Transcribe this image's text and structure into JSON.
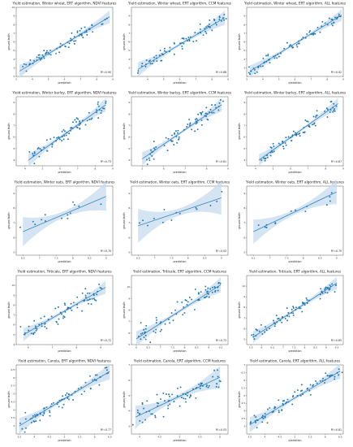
{
  "chart_data": [
    {
      "type": "scatter",
      "title": "Yield estimation, Winter wheat, ERT algorithm, NDVI features",
      "xlabel": "prediction",
      "ylabel": "ground truth",
      "r2": "R²=0.90",
      "xlim": [
        3,
        9
      ],
      "ylim": [
        2,
        10
      ],
      "xticks": [
        3,
        4,
        5,
        6,
        7,
        8,
        9
      ],
      "yticks": [
        2,
        3,
        4,
        5,
        6,
        7,
        8,
        9,
        10
      ],
      "fit": [
        3.2,
        2.6,
        8.8,
        8.9
      ],
      "band": 0.45,
      "spread": 0.5
    },
    {
      "type": "scatter",
      "title": "Yield estimation, Winter wheat, ERT algorithm, CCM features",
      "xlabel": "prediction",
      "ylabel": "ground truth",
      "r2": "R²=0.88",
      "xlim": [
        3,
        9
      ],
      "ylim": [
        2,
        10
      ],
      "xticks": [
        4,
        5,
        6,
        7,
        8,
        9
      ],
      "yticks": [
        3,
        4,
        5,
        6,
        7,
        8,
        9
      ],
      "fit": [
        3.4,
        2.8,
        8.8,
        8.8
      ],
      "band": 0.5,
      "spread": 0.55
    },
    {
      "type": "scatter",
      "title": "Yield estimation, Winter wheat, ERT algorithm, ALL features",
      "xlabel": "prediction",
      "ylabel": "ground truth",
      "r2": "R²=0.92",
      "xlim": [
        3,
        9
      ],
      "ylim": [
        2,
        10
      ],
      "xticks": [
        3,
        4,
        5,
        6,
        7,
        8,
        9
      ],
      "yticks": [
        3,
        4,
        5,
        6,
        7,
        8,
        9
      ],
      "fit": [
        3.2,
        2.6,
        8.9,
        9.1
      ],
      "band": 0.4,
      "spread": 0.45
    },
    {
      "type": "scatter",
      "title": "Yield estimation, Winter barley, ERT algorithm, NDVI features",
      "xlabel": "prediction",
      "ylabel": "ground truth",
      "r2": "R²=0.73",
      "xlim": [
        3.5,
        9
      ],
      "ylim": [
        3.5,
        9.5
      ],
      "xticks": [
        4,
        5,
        6,
        7,
        8,
        9
      ],
      "yticks": [
        4,
        5,
        6,
        7,
        8,
        9
      ],
      "fit": [
        4.2,
        4.0,
        8.6,
        8.8
      ],
      "band": 0.35,
      "spread": 0.55
    },
    {
      "type": "scatter",
      "title": "Yield estimation, Winter barley, ERT algorithm, CCM features",
      "xlabel": "prediction",
      "ylabel": "ground truth",
      "r2": "R²=0.81",
      "xlim": [
        4.5,
        9
      ],
      "ylim": [
        3.5,
        9.5
      ],
      "xticks": [
        5,
        6,
        7,
        8,
        9
      ],
      "yticks": [
        4,
        5,
        6,
        7,
        8,
        9
      ],
      "fit": [
        5.0,
        4.1,
        8.7,
        8.8
      ],
      "band": 0.35,
      "spread": 0.5
    },
    {
      "type": "scatter",
      "title": "Yield estimation, Winter barley, ERT algorithm, ALL features",
      "xlabel": "prediction",
      "ylabel": "ground truth",
      "r2": "R²=0.87",
      "xlim": [
        3.5,
        9
      ],
      "ylim": [
        3.5,
        9.5
      ],
      "xticks": [
        4,
        5,
        6,
        7,
        8,
        9
      ],
      "yticks": [
        4,
        5,
        6,
        7,
        8,
        9
      ],
      "fit": [
        4.2,
        4.0,
        8.7,
        8.9
      ],
      "band": 0.3,
      "spread": 0.4
    },
    {
      "type": "scatter",
      "title": "Yield estimation, Winter oats, ERT algorithm, NDVI features",
      "xlabel": "prediction",
      "ylabel": "ground truth",
      "r2": "R²=0.70",
      "xlim": [
        6.3,
        9.2
      ],
      "ylim": [
        4.8,
        9.5
      ],
      "xticks": [
        6.5,
        7.0,
        7.5,
        8.0,
        8.5,
        9.0
      ],
      "yticks": [
        5,
        6,
        7,
        8,
        9
      ],
      "fit": [
        6.5,
        6.4,
        9.0,
        8.8
      ],
      "band": 0.6,
      "spread": 0.4
    },
    {
      "type": "scatter",
      "title": "Yield estimation, Winter oats, ERT algorithm, CCM features",
      "xlabel": "prediction",
      "ylabel": "ground truth",
      "r2": "R²=0.52",
      "xlim": [
        6.3,
        9.2
      ],
      "ylim": [
        4.8,
        9.5
      ],
      "xticks": [
        6.5,
        7.0,
        7.5,
        8.0,
        8.5,
        9.0
      ],
      "yticks": [
        5,
        6,
        7,
        8,
        9
      ],
      "fit": [
        6.5,
        6.8,
        9.0,
        8.7
      ],
      "band": 0.7,
      "spread": 0.5
    },
    {
      "type": "scatter",
      "title": "Yield estimation, Winter oats, ERT algorithm, ALL features",
      "xlabel": "prediction",
      "ylabel": "ground truth",
      "r2": "R²=0.79",
      "xlim": [
        6.3,
        9.2
      ],
      "ylim": [
        4.8,
        9.5
      ],
      "xticks": [
        6.5,
        7.0,
        7.5,
        8.0,
        8.5,
        9.0
      ],
      "yticks": [
        5,
        6,
        7,
        8,
        9
      ],
      "fit": [
        6.5,
        6.4,
        9.0,
        9.1
      ],
      "band": 0.5,
      "spread": 0.3
    },
    {
      "type": "scatter",
      "title": "Yield estimation, Triticale, ERT algorithm, NDVI features",
      "xlabel": "prediction",
      "ylabel": "ground truth",
      "r2": "R²=0.72",
      "xlim": [
        5.5,
        9.5
      ],
      "ylim": [
        4,
        11
      ],
      "xticks": [
        6,
        7,
        8,
        9
      ],
      "yticks": [
        4,
        5,
        6,
        7,
        8,
        9,
        10
      ],
      "fit": [
        5.8,
        5.0,
        9.2,
        9.8
      ],
      "band": 0.4,
      "spread": 0.7
    },
    {
      "type": "scatter",
      "title": "Yield estimation, Triticale, ERT algorithm, CCM features",
      "xlabel": "prediction",
      "ylabel": "ground truth",
      "r2": "R²=0.72",
      "xlim": [
        5.8,
        9.8
      ],
      "ylim": [
        5,
        11
      ],
      "xticks": [
        6.0,
        6.5,
        7.0,
        7.5,
        8.0,
        8.5,
        9.0,
        9.5
      ],
      "yticks": [
        5,
        6,
        7,
        8,
        9,
        10
      ],
      "fit": [
        6.0,
        5.5,
        9.5,
        10.2
      ],
      "band": 0.4,
      "spread": 0.65
    },
    {
      "type": "scatter",
      "title": "Yield estimation, Triticale, ERT algorithm, ALL features",
      "xlabel": "prediction",
      "ylabel": "ground truth",
      "r2": "R²=0.85",
      "xlim": [
        5.3,
        9.8
      ],
      "ylim": [
        4.5,
        11
      ],
      "xticks": [
        5.5,
        6.0,
        6.5,
        7.0,
        7.5,
        8.0,
        8.5,
        9.0,
        9.5
      ],
      "yticks": [
        5,
        6,
        7,
        8,
        9,
        10
      ],
      "fit": [
        5.6,
        5.2,
        9.5,
        10.3
      ],
      "band": 0.35,
      "spread": 0.5
    },
    {
      "type": "scatter",
      "title": "Yield estimation, Canola, ERT algorithm, NDVI features",
      "xlabel": "prediction",
      "ylabel": "ground truth",
      "r2": "R²=0.77",
      "xlim": [
        3.4,
        6.6
      ],
      "ylim": [
        2.5,
        6.8
      ],
      "xticks": [
        3.5,
        4.0,
        4.5,
        5.0,
        5.5,
        6.0,
        6.5
      ],
      "yticks": [
        3.0,
        3.5,
        4.0,
        4.5,
        5.0,
        5.5,
        6.0,
        6.5
      ],
      "fit": [
        3.5,
        3.0,
        6.5,
        6.4
      ],
      "band": 0.3,
      "spread": 0.35
    },
    {
      "type": "scatter",
      "title": "Yield estimation, Canola, ERT algorithm, CCM features",
      "xlabel": "prediction",
      "ylabel": "ground truth",
      "r2": "R²=0.53",
      "xlim": [
        3.8,
        6.2
      ],
      "ylim": [
        2.5,
        7
      ],
      "xticks": [
        4.0,
        4.5,
        5.0,
        5.5,
        6.0
      ],
      "yticks": [
        3,
        4,
        5,
        6,
        7
      ],
      "fit": [
        3.9,
        3.6,
        6.0,
        6.2
      ],
      "band": 0.45,
      "spread": 0.5
    },
    {
      "type": "scatter",
      "title": "Yield estimation, Canola, ERT algorithm, ALL features",
      "xlabel": "prediction",
      "ylabel": "ground truth",
      "r2": "R²=0.81",
      "xlim": [
        3.4,
        6.6
      ],
      "ylim": [
        2.5,
        7
      ],
      "xticks": [
        3.5,
        4.0,
        4.5,
        5.0,
        5.5,
        6.0,
        6.5
      ],
      "yticks": [
        3.0,
        3.5,
        4.0,
        4.5,
        5.0,
        5.5,
        6.0,
        6.5,
        7.0
      ],
      "fit": [
        3.5,
        3.1,
        6.5,
        6.6
      ],
      "band": 0.3,
      "spread": 0.3
    }
  ],
  "colors": {
    "point": "#1f77b4",
    "line": "#1f77b4",
    "band": "#c6dbef",
    "axis": "#333333"
  }
}
